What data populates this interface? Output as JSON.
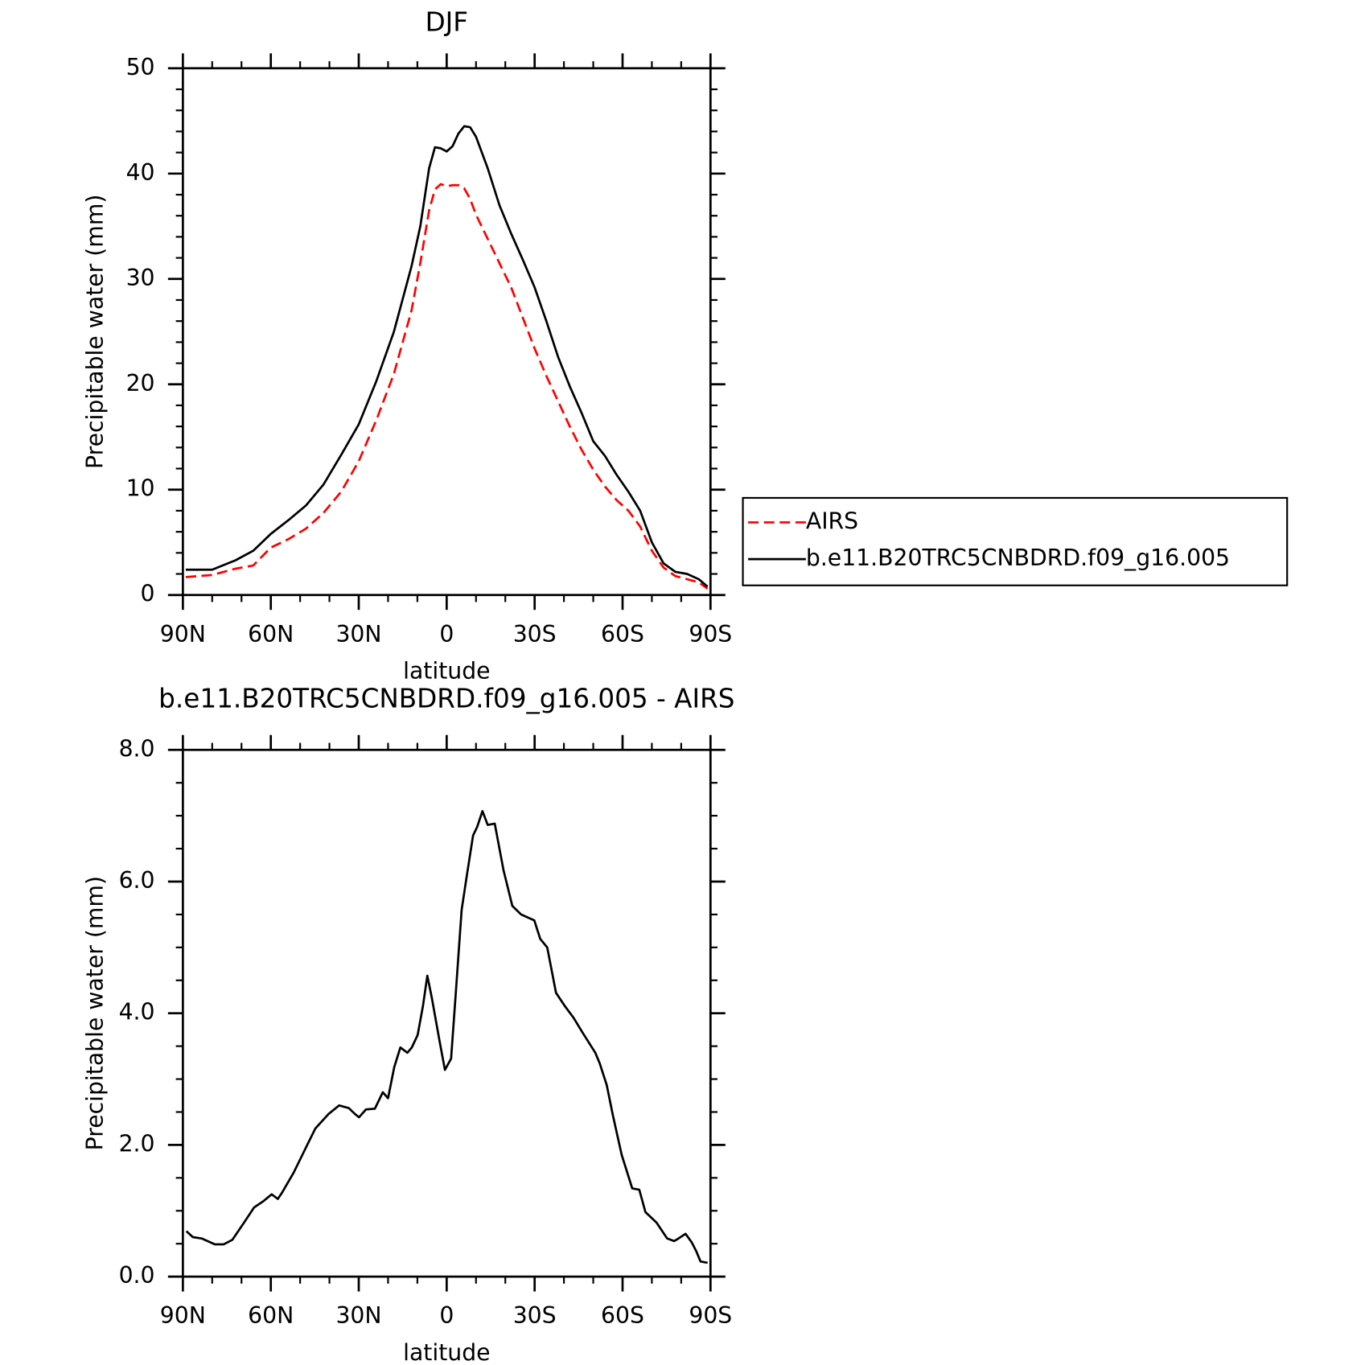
{
  "chart_data": [
    {
      "type": "line",
      "title": "DJF",
      "xlabel": "latitude",
      "ylabel": "Precipitable water (mm)",
      "x": [
        89,
        80,
        72,
        66,
        60,
        54,
        48,
        42,
        36,
        30,
        24,
        18,
        12,
        9,
        6,
        4,
        2,
        0,
        -2,
        -4,
        -6,
        -8,
        -10,
        -14,
        -18,
        -22,
        -26,
        -30,
        -34,
        -38,
        -42,
        -46,
        -50,
        -54,
        -58,
        -62,
        -66,
        -70,
        -74,
        -78,
        -82,
        -86,
        -89
      ],
      "series": [
        {
          "name": "AIRS",
          "color": "#ff0000",
          "line_style": "dashed",
          "values": [
            1.7,
            1.9,
            2.5,
            2.8,
            4.5,
            5.3,
            6.3,
            7.8,
            9.8,
            12.7,
            16.6,
            21.0,
            27.0,
            31.5,
            36.5,
            38.5,
            39.0,
            38.8,
            38.9,
            38.9,
            38.6,
            37.6,
            36.1,
            33.8,
            31.5,
            29.2,
            26.3,
            23.4,
            20.8,
            18.4,
            16.0,
            13.8,
            11.9,
            10.3,
            9.0,
            8.0,
            6.5,
            4.2,
            2.6,
            1.8,
            1.5,
            1.2,
            0.6
          ]
        },
        {
          "name": "b.e11.B20TRC5CNBDRD.f09_g16.005",
          "color": "#000000",
          "line_style": "solid",
          "values": [
            2.4,
            2.4,
            3.3,
            4.2,
            5.8,
            7.1,
            8.5,
            10.5,
            13.3,
            16.2,
            20.3,
            25.0,
            31.2,
            35.0,
            40.5,
            42.5,
            42.4,
            42.1,
            42.6,
            43.8,
            44.5,
            44.4,
            43.5,
            40.5,
            37.0,
            34.3,
            31.8,
            29.2,
            26.0,
            22.6,
            19.8,
            17.3,
            14.6,
            13.2,
            11.4,
            9.8,
            8.0,
            5.0,
            3.0,
            2.2,
            2.0,
            1.5,
            0.8
          ]
        }
      ],
      "xlim": [
        90,
        -90
      ],
      "xticks": [
        {
          "value": 90,
          "label": "90N"
        },
        {
          "value": 60,
          "label": "60N"
        },
        {
          "value": 30,
          "label": "30N"
        },
        0,
        {
          "value": -30,
          "label": "30S"
        },
        {
          "value": -60,
          "label": "60S"
        },
        {
          "value": -90,
          "label": "90S"
        }
      ],
      "minor_xticks": [
        80,
        70,
        50,
        40,
        20,
        10,
        -10,
        -20,
        -40,
        -50,
        -70,
        -80
      ],
      "ylim": [
        0,
        50
      ],
      "yticks": [
        0,
        10,
        20,
        30,
        40,
        50
      ],
      "minor_yticks": [
        2,
        4,
        6,
        8,
        12,
        14,
        16,
        18,
        22,
        24,
        26,
        28,
        32,
        34,
        36,
        38,
        42,
        44,
        46,
        48
      ],
      "legend": "right",
      "grid": false
    },
    {
      "type": "line",
      "title": "b.e11.B20TRC5CNBDRD.f09_g16.005 - AIRS",
      "xlabel": "latitude",
      "ylabel": "Precipitable water (mm)",
      "x": [
        88.8,
        86.6,
        83.6,
        79.1,
        76.1,
        73.1,
        69.3,
        65.7,
        62.7,
        59.7,
        57.6,
        56.1,
        52.2,
        47.8,
        44.8,
        40.3,
        36.7,
        33.4,
        31.3,
        29.9,
        27.5,
        24.5,
        21.8,
        20,
        17.9,
        15.8,
        13.4,
        11.9,
        9.9,
        8.1,
        6.6,
        5.1,
        2.4,
        0.6,
        -1.5,
        -3,
        -5.1,
        -6.9,
        -9,
        -10.4,
        -12.2,
        -14,
        -16.4,
        -19.4,
        -22.4,
        -25.4,
        -26.9,
        -29.9,
        -31.9,
        -34.3,
        -37.3,
        -40.3,
        -43.3,
        -46.3,
        -50.7,
        -52.2,
        -54.6,
        -56.7,
        -59.7,
        -63.3,
        -65.7,
        -67.8,
        -71.6,
        -75.2,
        -77.6,
        -79.1,
        -81.5,
        -83.6,
        -85.1,
        -86.6,
        -89
      ],
      "series": [
        {
          "name": "b.e11.B20TRC5CNBDRD.f09_g16.005 - AIRS",
          "color": "#000000",
          "line_style": "solid",
          "values": [
            0.69,
            0.6,
            0.58,
            0.49,
            0.49,
            0.56,
            0.81,
            1.05,
            1.14,
            1.25,
            1.18,
            1.28,
            1.58,
            1.98,
            2.25,
            2.47,
            2.6,
            2.56,
            2.47,
            2.42,
            2.54,
            2.55,
            2.8,
            2.71,
            3.18,
            3.48,
            3.4,
            3.48,
            3.67,
            4.11,
            4.57,
            4.24,
            3.57,
            3.14,
            3.31,
            4.24,
            5.57,
            6.1,
            6.7,
            6.83,
            7.07,
            6.86,
            6.88,
            6.17,
            5.63,
            5.5,
            5.47,
            5.41,
            5.13,
            5.0,
            4.31,
            4.11,
            3.93,
            3.71,
            3.4,
            3.24,
            2.91,
            2.45,
            1.85,
            1.34,
            1.32,
            0.98,
            0.82,
            0.58,
            0.54,
            0.58,
            0.65,
            0.52,
            0.39,
            0.23,
            0.21
          ]
        }
      ],
      "xlim": [
        90,
        -90
      ],
      "xticks": [
        {
          "value": 90,
          "label": "90N"
        },
        {
          "value": 60,
          "label": "60N"
        },
        {
          "value": 30,
          "label": "30N"
        },
        0,
        {
          "value": -30,
          "label": "30S"
        },
        {
          "value": -60,
          "label": "60S"
        },
        {
          "value": -90,
          "label": "90S"
        }
      ],
      "minor_xticks": [
        80,
        70,
        50,
        40,
        20,
        10,
        -10,
        -20,
        -40,
        -50,
        -70,
        -80
      ],
      "ylim": [
        0,
        8
      ],
      "yticks": [
        {
          "value": 0,
          "label": "0.0"
        },
        {
          "value": 2,
          "label": "2.0"
        },
        {
          "value": 4,
          "label": "4.0"
        },
        {
          "value": 6,
          "label": "6.0"
        },
        {
          "value": 8,
          "label": "8.0"
        }
      ],
      "minor_yticks": [
        0.5,
        1,
        1.5,
        2.5,
        3,
        3.5,
        4.5,
        5,
        5.5,
        6.5,
        7,
        7.5
      ],
      "legend": "none",
      "grid": false
    }
  ]
}
